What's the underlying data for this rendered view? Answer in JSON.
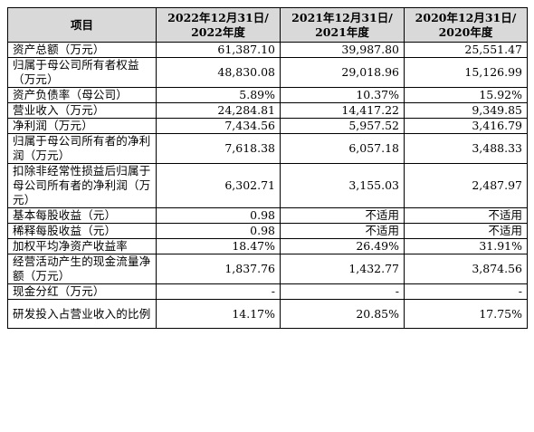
{
  "table": {
    "headers": {
      "item": "项目",
      "col1_line1": "2022年12月31日/",
      "col1_line2": "2022年度",
      "col2_line1": "2021年12月31日/",
      "col2_line2": "2021年度",
      "col3_line1": "2020年12月31日/",
      "col3_line2": "2020年度"
    },
    "rows": [
      {
        "label": "资产总额（万元）",
        "v2022": "61,387.10",
        "v2021": "39,987.80",
        "v2020": "25,551.47"
      },
      {
        "label": "归属于母公司所有者权益（万元）",
        "v2022": "48,830.08",
        "v2021": "29,018.96",
        "v2020": "15,126.99"
      },
      {
        "label": "资产负债率（母公司）",
        "v2022": "5.89%",
        "v2021": "10.37%",
        "v2020": "15.92%"
      },
      {
        "label": "营业收入（万元）",
        "v2022": "24,284.81",
        "v2021": "14,417.22",
        "v2020": "9,349.85"
      },
      {
        "label": "净利润（万元）",
        "v2022": "7,434.56",
        "v2021": "5,957.52",
        "v2020": "3,416.79"
      },
      {
        "label": "归属于母公司所有者的净利润（万元）",
        "v2022": "7,618.38",
        "v2021": "6,057.18",
        "v2020": "3,488.33"
      },
      {
        "label": "扣除非经常性损益后归属于母公司所有者的净利润（万元）",
        "v2022": "6,302.71",
        "v2021": "3,155.03",
        "v2020": "2,487.97"
      },
      {
        "label": "基本每股收益（元）",
        "v2022": "0.98",
        "v2021": "不适用",
        "v2020": "不适用"
      },
      {
        "label": "稀释每股收益（元）",
        "v2022": "0.98",
        "v2021": "不适用",
        "v2020": "不适用"
      },
      {
        "label": "加权平均净资产收益率",
        "v2022": "18.47%",
        "v2021": "26.49%",
        "v2020": "31.91%"
      },
      {
        "label": "经营活动产生的现金流量净额（万元）",
        "v2022": "1,837.76",
        "v2021": "1,432.77",
        "v2020": "3,874.56"
      },
      {
        "label": "现金分红（万元）",
        "v2022": "-",
        "v2021": "-",
        "v2020": "-"
      },
      {
        "label": "研发投入占营业收入的比例",
        "v2022": "14.17%",
        "v2021": "20.85%",
        "v2020": "17.75%"
      }
    ]
  }
}
